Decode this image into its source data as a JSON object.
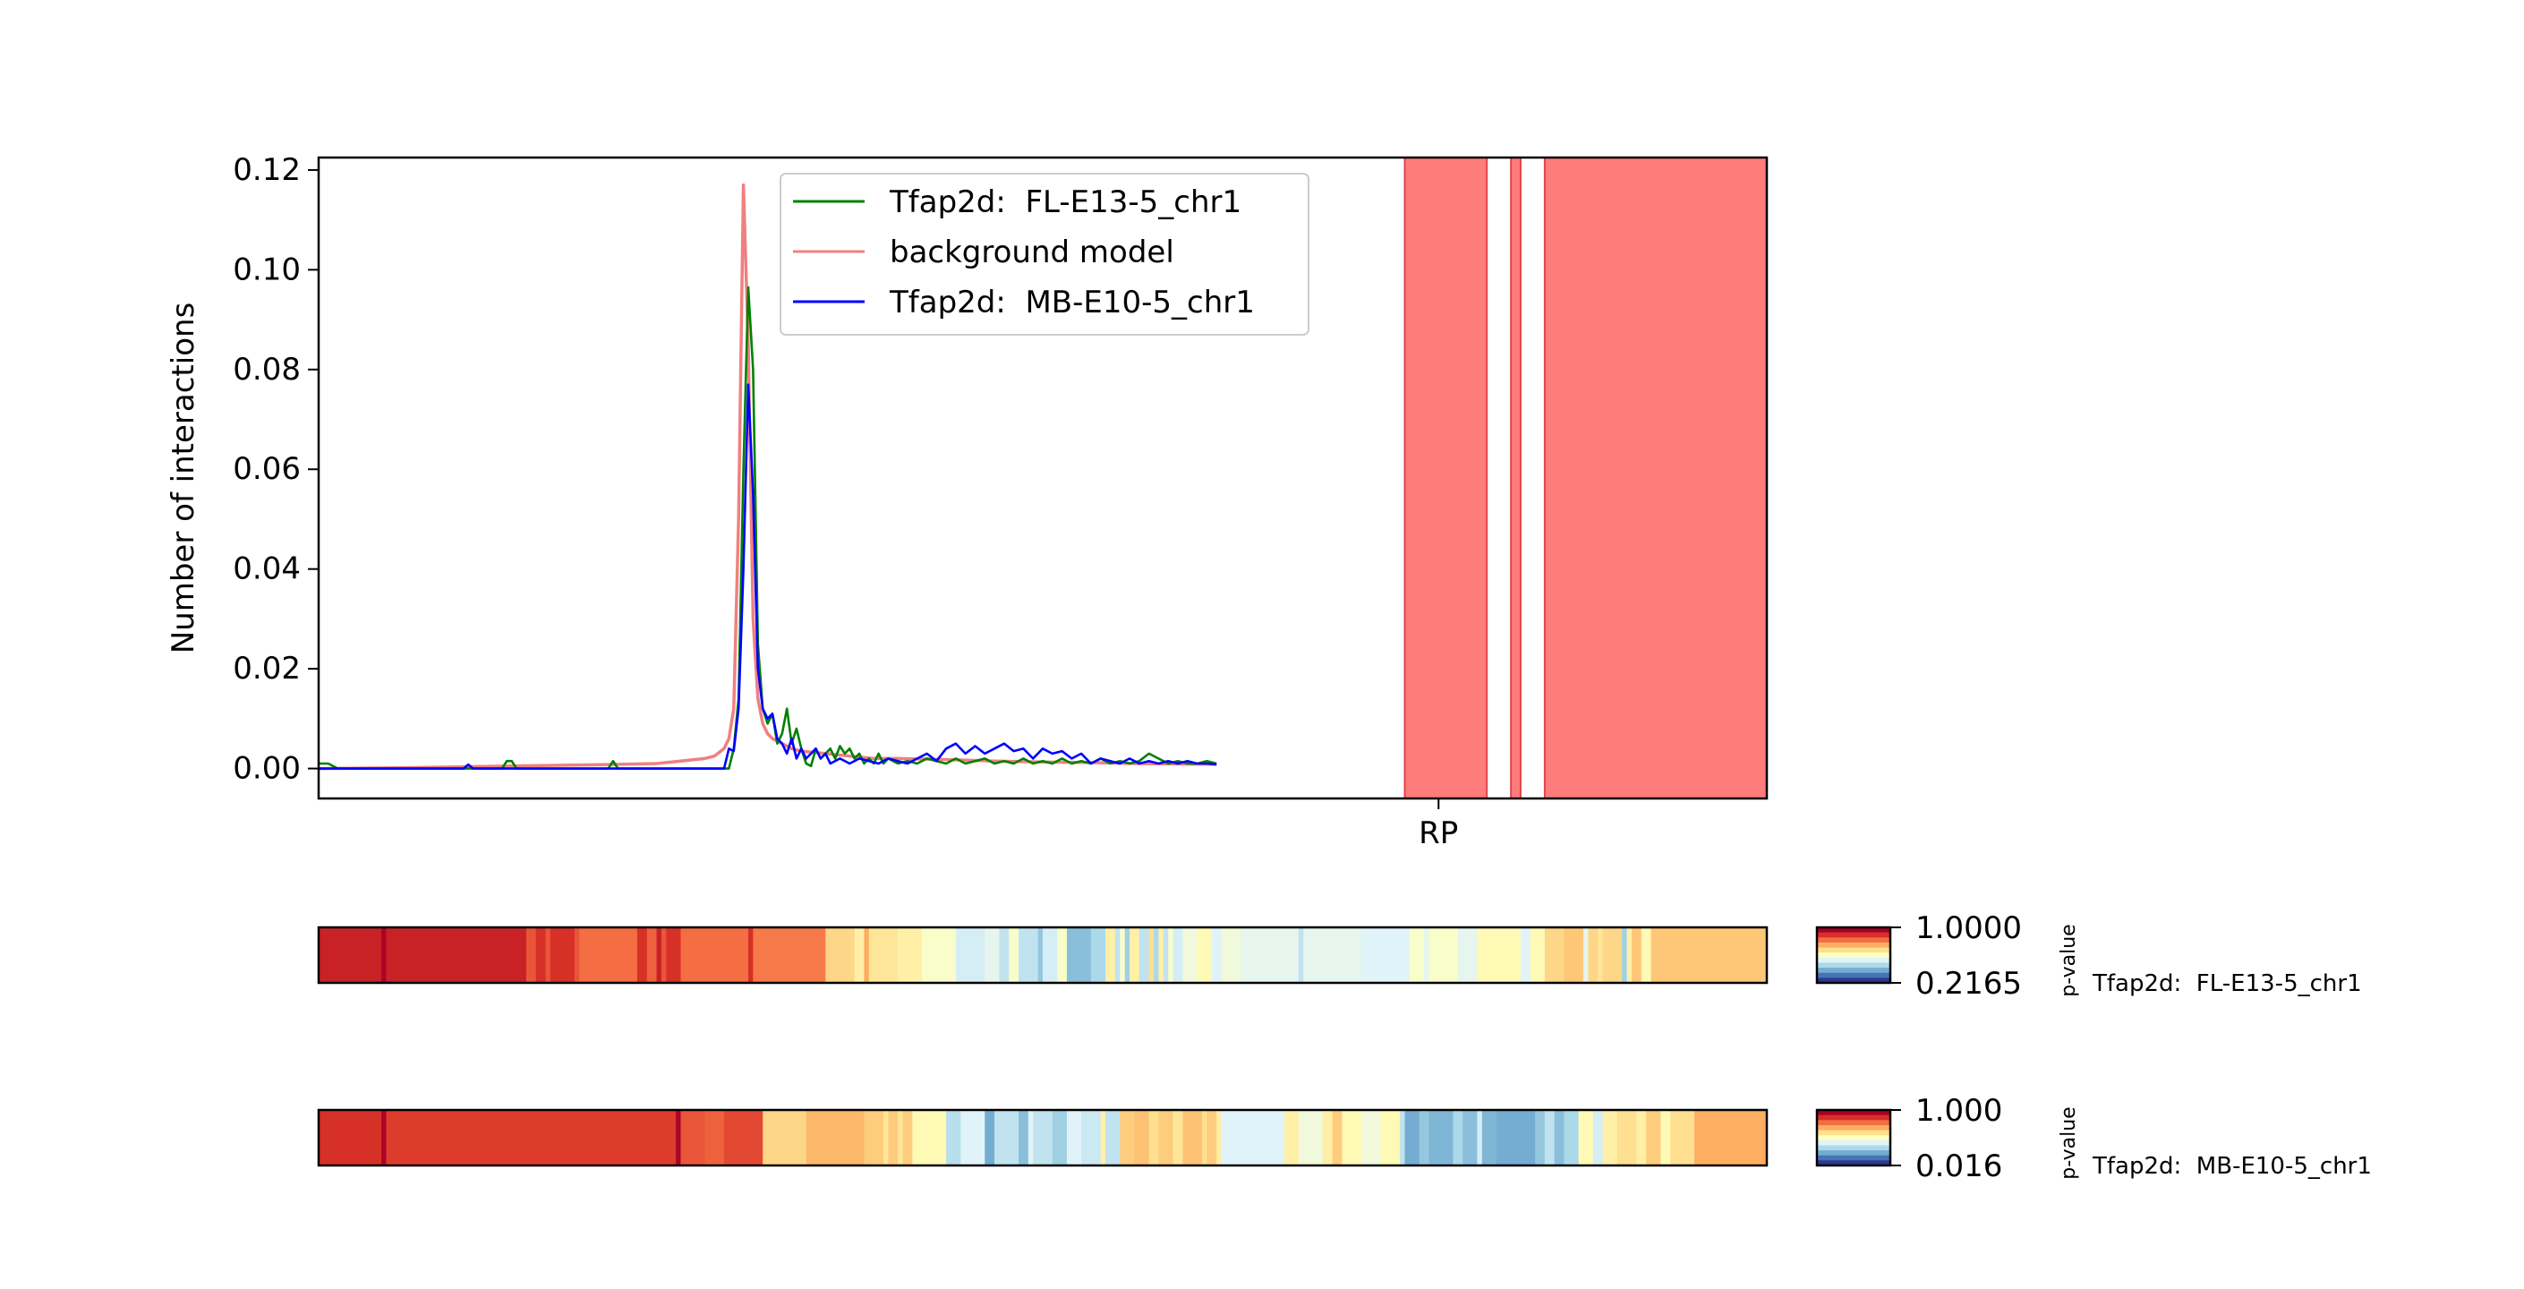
{
  "chart_data": {
    "main": {
      "type": "line",
      "ylabel": "Number of interactions",
      "xlabel": "",
      "ylim": [
        -0.006,
        0.1225
      ],
      "yticks": [
        "0.00",
        "0.02",
        "0.04",
        "0.06",
        "0.08",
        "0.10",
        "0.12"
      ],
      "ytick_values": [
        0,
        0.02,
        0.04,
        0.06,
        0.08,
        0.1,
        0.12
      ],
      "xlim": [
        0,
        300
      ],
      "xticks": [
        {
          "x": 232,
          "label": "RP"
        }
      ],
      "legend_location": "upper center",
      "grid": false,
      "series": [
        {
          "name": "Tfap2d:  FL-E13-5_chr1",
          "color": "#008000",
          "x": [
            0,
            2,
            4,
            38,
            39,
            40,
            41,
            42,
            60,
            61,
            62,
            84,
            85,
            86,
            87,
            88,
            89,
            90,
            91,
            92,
            93,
            94,
            95,
            96,
            97,
            98,
            99,
            100,
            101,
            102,
            103,
            104,
            105,
            106,
            107,
            108,
            109,
            110,
            111,
            112,
            113,
            114,
            115,
            116,
            117,
            118,
            120,
            122,
            124,
            126,
            128,
            130,
            132,
            134,
            136,
            138,
            140,
            142,
            144,
            146,
            148,
            150,
            152,
            154,
            156,
            158,
            160,
            162,
            164,
            166,
            168,
            170,
            172,
            174,
            176,
            178,
            180,
            182,
            184,
            186
          ],
          "values": [
            0.001,
            0.001,
            0,
            0,
            0.0015,
            0.0015,
            0,
            0,
            0,
            0.0015,
            0,
            0,
            0,
            0.004,
            0.014,
            0.06,
            0.0965,
            0.08,
            0.025,
            0.012,
            0.009,
            0.011,
            0.005,
            0.007,
            0.012,
            0.005,
            0.008,
            0.004,
            0.001,
            0.0005,
            0.004,
            0.002,
            0.003,
            0.004,
            0.002,
            0.0045,
            0.003,
            0.004,
            0.002,
            0.003,
            0.001,
            0.002,
            0.001,
            0.003,
            0.001,
            0.002,
            0.001,
            0.0015,
            0.001,
            0.002,
            0.0015,
            0.001,
            0.002,
            0.001,
            0.0015,
            0.002,
            0.001,
            0.0015,
            0.001,
            0.002,
            0.001,
            0.0015,
            0.001,
            0.002,
            0.001,
            0.0015,
            0.001,
            0.002,
            0.001,
            0.0015,
            0.001,
            0.0015,
            0.003,
            0.002,
            0.001,
            0.0015,
            0.001,
            0.001,
            0.0015,
            0.001
          ]
        },
        {
          "name": "background model",
          "color": "#f08080",
          "x": [
            0,
            20,
            40,
            60,
            70,
            75,
            80,
            82,
            84,
            85,
            86,
            87,
            88,
            89,
            90,
            91,
            92,
            93,
            94,
            96,
            98,
            100,
            105,
            110,
            115,
            120,
            130,
            140,
            150,
            160,
            170,
            180,
            186
          ],
          "values": [
            0,
            0.0002,
            0.0005,
            0.0008,
            0.001,
            0.0015,
            0.002,
            0.0025,
            0.004,
            0.006,
            0.012,
            0.05,
            0.117,
            0.085,
            0.03,
            0.014,
            0.009,
            0.007,
            0.006,
            0.005,
            0.004,
            0.0035,
            0.003,
            0.0025,
            0.002,
            0.002,
            0.0018,
            0.0015,
            0.0013,
            0.0012,
            0.001,
            0.0009,
            0.0009
          ]
        },
        {
          "name": "Tfap2d:  MB-E10-5_chr1",
          "color": "#0000ff",
          "x": [
            0,
            30,
            31,
            32,
            84,
            85,
            86,
            87,
            88,
            89,
            90,
            91,
            92,
            93,
            94,
            95,
            96,
            97,
            98,
            99,
            100,
            101,
            102,
            103,
            104,
            105,
            106,
            108,
            110,
            112,
            114,
            116,
            118,
            120,
            122,
            124,
            126,
            128,
            130,
            132,
            134,
            136,
            138,
            140,
            142,
            144,
            146,
            148,
            150,
            152,
            154,
            156,
            158,
            160,
            162,
            164,
            166,
            168,
            170,
            172,
            174,
            176,
            178,
            180,
            182,
            184,
            186
          ],
          "values": [
            0,
            0,
            0.0008,
            0,
            0,
            0.004,
            0.0035,
            0.012,
            0.04,
            0.077,
            0.055,
            0.02,
            0.012,
            0.01,
            0.011,
            0.006,
            0.005,
            0.003,
            0.006,
            0.002,
            0.004,
            0.002,
            0.003,
            0.004,
            0.002,
            0.003,
            0.001,
            0.002,
            0.001,
            0.002,
            0.0015,
            0.001,
            0.002,
            0.0015,
            0.001,
            0.002,
            0.003,
            0.0015,
            0.004,
            0.005,
            0.003,
            0.0045,
            0.003,
            0.004,
            0.005,
            0.0035,
            0.004,
            0.002,
            0.004,
            0.003,
            0.0035,
            0.002,
            0.003,
            0.001,
            0.002,
            0.0015,
            0.001,
            0.002,
            0.001,
            0.0015,
            0.001,
            0.0015,
            0.001,
            0.0015,
            0.001,
            0.001,
            0.0008
          ]
        }
      ],
      "highlight_regions": [
        [
          225,
          242
        ],
        [
          247,
          249
        ],
        [
          254,
          300
        ]
      ],
      "highlight_color": "#ff7c7c"
    },
    "heatmaps": [
      {
        "type": "heatmap",
        "label": "Tfap2d:  FL-E13-5_chr1",
        "colorbar_label": "p-value",
        "colorbar_ticks": [
          "1.0000",
          "0.2165"
        ],
        "vmin": 0.2165,
        "vmax": 1.0,
        "segments": [
          [
            0,
            13,
            0.93
          ],
          [
            13,
            14,
            0.99
          ],
          [
            14,
            43,
            0.93
          ],
          [
            43,
            45,
            0.84
          ],
          [
            45,
            47,
            0.9
          ],
          [
            47,
            48,
            0.84
          ],
          [
            48,
            53,
            0.9
          ],
          [
            53,
            54,
            0.84
          ],
          [
            54,
            66,
            0.8
          ],
          [
            66,
            68,
            0.9
          ],
          [
            68,
            70,
            0.82
          ],
          [
            70,
            71,
            0.93
          ],
          [
            71,
            72,
            0.84
          ],
          [
            72,
            75,
            0.9
          ],
          [
            75,
            89,
            0.8
          ],
          [
            89,
            90,
            0.9
          ],
          [
            90,
            105,
            0.78
          ],
          [
            105,
            111,
            0.62
          ],
          [
            111,
            113,
            0.55
          ],
          [
            113,
            114,
            0.7
          ],
          [
            114,
            120,
            0.58
          ],
          [
            120,
            125,
            0.55
          ],
          [
            125,
            132,
            0.48
          ],
          [
            132,
            138,
            0.38
          ],
          [
            138,
            141,
            0.42
          ],
          [
            141,
            143,
            0.34
          ],
          [
            143,
            145,
            0.48
          ],
          [
            145,
            149,
            0.34
          ],
          [
            149,
            150,
            0.26
          ],
          [
            150,
            153,
            0.38
          ],
          [
            153,
            155,
            0.48
          ],
          [
            155,
            160,
            0.24
          ],
          [
            160,
            163,
            0.3
          ],
          [
            163,
            165,
            0.55
          ],
          [
            165,
            166,
            0.34
          ],
          [
            166,
            167,
            0.48
          ],
          [
            167,
            168,
            0.28
          ],
          [
            168,
            170,
            0.55
          ],
          [
            170,
            172,
            0.34
          ],
          [
            172,
            173,
            0.6
          ],
          [
            173,
            174,
            0.3
          ],
          [
            174,
            175,
            0.55
          ],
          [
            175,
            176,
            0.34
          ],
          [
            176,
            177,
            0.48
          ],
          [
            177,
            179,
            0.38
          ],
          [
            179,
            182,
            0.45
          ],
          [
            182,
            185,
            0.52
          ],
          [
            185,
            187,
            0.4
          ],
          [
            187,
            191,
            0.45
          ],
          [
            191,
            203,
            0.42
          ],
          [
            203,
            204,
            0.34
          ],
          [
            204,
            216,
            0.42
          ],
          [
            216,
            226,
            0.4
          ],
          [
            226,
            229,
            0.48
          ],
          [
            229,
            230,
            0.42
          ],
          [
            230,
            236,
            0.48
          ],
          [
            236,
            240,
            0.42
          ],
          [
            240,
            249,
            0.52
          ],
          [
            249,
            251,
            0.4
          ],
          [
            251,
            254,
            0.52
          ],
          [
            254,
            258,
            0.62
          ],
          [
            258,
            262,
            0.65
          ],
          [
            262,
            263,
            0.42
          ],
          [
            263,
            265,
            0.62
          ],
          [
            265,
            266,
            0.58
          ],
          [
            266,
            270,
            0.62
          ],
          [
            270,
            271,
            0.28
          ],
          [
            271,
            272,
            0.55
          ],
          [
            272,
            274,
            0.65
          ],
          [
            274,
            276,
            0.52
          ],
          [
            276,
            282,
            0.65
          ],
          [
            282,
            300,
            0.65
          ]
        ]
      },
      {
        "type": "heatmap",
        "label": "Tfap2d:  MB-E10-5_chr1",
        "colorbar_label": "p-value",
        "colorbar_ticks": [
          "1.000",
          "0.016"
        ],
        "vmin": 0.016,
        "vmax": 1.0,
        "segments": [
          [
            0,
            13,
            0.9
          ],
          [
            13,
            14,
            0.99
          ],
          [
            14,
            74,
            0.88
          ],
          [
            74,
            75,
            0.99
          ],
          [
            75,
            80,
            0.84
          ],
          [
            80,
            84,
            0.82
          ],
          [
            84,
            92,
            0.86
          ],
          [
            92,
            101,
            0.62
          ],
          [
            101,
            113,
            0.68
          ],
          [
            113,
            117,
            0.64
          ],
          [
            117,
            118,
            0.58
          ],
          [
            118,
            120,
            0.64
          ],
          [
            120,
            121,
            0.58
          ],
          [
            121,
            123,
            0.64
          ],
          [
            123,
            130,
            0.52
          ],
          [
            130,
            133,
            0.32
          ],
          [
            133,
            138,
            0.4
          ],
          [
            138,
            140,
            0.2
          ],
          [
            140,
            145,
            0.34
          ],
          [
            145,
            147,
            0.24
          ],
          [
            147,
            148,
            0.4
          ],
          [
            148,
            152,
            0.34
          ],
          [
            152,
            155,
            0.28
          ],
          [
            155,
            158,
            0.4
          ],
          [
            158,
            162,
            0.36
          ],
          [
            162,
            163,
            0.55
          ],
          [
            163,
            166,
            0.34
          ],
          [
            166,
            169,
            0.64
          ],
          [
            169,
            172,
            0.66
          ],
          [
            172,
            174,
            0.6
          ],
          [
            174,
            177,
            0.64
          ],
          [
            177,
            179,
            0.58
          ],
          [
            179,
            183,
            0.66
          ],
          [
            183,
            184,
            0.6
          ],
          [
            184,
            186,
            0.64
          ],
          [
            186,
            187,
            0.55
          ],
          [
            187,
            200,
            0.4
          ],
          [
            200,
            203,
            0.55
          ],
          [
            203,
            208,
            0.45
          ],
          [
            208,
            210,
            0.55
          ],
          [
            210,
            212,
            0.64
          ],
          [
            212,
            216,
            0.52
          ],
          [
            216,
            220,
            0.45
          ],
          [
            220,
            224,
            0.52
          ],
          [
            224,
            225,
            0.34
          ],
          [
            225,
            228,
            0.2
          ],
          [
            228,
            230,
            0.26
          ],
          [
            230,
            235,
            0.22
          ],
          [
            235,
            237,
            0.3
          ],
          [
            237,
            240,
            0.24
          ],
          [
            240,
            241,
            0.38
          ],
          [
            241,
            244,
            0.22
          ],
          [
            244,
            252,
            0.2
          ],
          [
            252,
            254,
            0.26
          ],
          [
            254,
            256,
            0.34
          ],
          [
            256,
            258,
            0.24
          ],
          [
            258,
            261,
            0.3
          ],
          [
            261,
            264,
            0.52
          ],
          [
            264,
            266,
            0.38
          ],
          [
            266,
            269,
            0.55
          ],
          [
            269,
            273,
            0.6
          ],
          [
            273,
            275,
            0.55
          ],
          [
            275,
            278,
            0.64
          ],
          [
            278,
            280,
            0.52
          ],
          [
            280,
            285,
            0.6
          ],
          [
            285,
            300,
            0.7
          ]
        ]
      }
    ]
  }
}
